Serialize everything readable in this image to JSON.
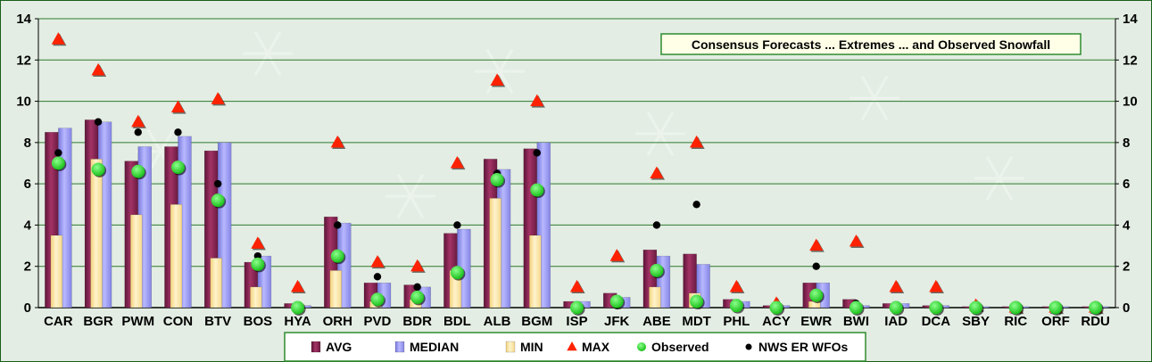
{
  "chart_data": {
    "type": "bar",
    "title": "Consensus Forecasts ... Extremes ... and Observed Snowfall",
    "xlabel": "",
    "ylabel": "",
    "ylim": [
      0,
      14
    ],
    "y_ticks": [
      0,
      2,
      4,
      6,
      8,
      10,
      12,
      14
    ],
    "grid": true,
    "legend_position": "bottom",
    "categories": [
      "CAR",
      "BGR",
      "PWM",
      "CON",
      "BTV",
      "BOS",
      "HYA",
      "ORH",
      "PVD",
      "BDR",
      "BDL",
      "ALB",
      "BGM",
      "ISP",
      "JFK",
      "ABE",
      "MDT",
      "PHL",
      "ACY",
      "EWR",
      "BWI",
      "IAD",
      "DCA",
      "SBY",
      "RIC",
      "ORF",
      "RDU"
    ],
    "series": [
      {
        "name": "AVG",
        "type": "bar",
        "color": "#8B2252",
        "values": [
          8.5,
          9.1,
          7.1,
          7.8,
          7.6,
          2.2,
          0.2,
          4.4,
          1.2,
          1.1,
          3.6,
          7.2,
          7.7,
          0.3,
          0.7,
          2.8,
          2.6,
          0.4,
          0.1,
          1.2,
          0.4,
          0.2,
          0.1,
          0.05,
          0.05,
          0.05,
          0.05
        ]
      },
      {
        "name": "MEDIAN",
        "type": "bar",
        "color": "#9999FF",
        "values": [
          8.7,
          9.0,
          7.8,
          8.3,
          8.0,
          2.5,
          0.1,
          4.1,
          1.2,
          1.0,
          3.8,
          6.7,
          8.0,
          0.3,
          0.5,
          2.5,
          2.1,
          0.3,
          0.1,
          1.2,
          0.1,
          0.2,
          0.1,
          0.05,
          0.05,
          0.05,
          0.05
        ]
      },
      {
        "name": "MIN",
        "type": "bar",
        "color": "#FFE9A8",
        "values": [
          3.5,
          7.2,
          4.5,
          5.0,
          2.4,
          1.0,
          0.0,
          1.8,
          0.3,
          0.4,
          1.8,
          5.3,
          3.5,
          0.0,
          0.0,
          1.0,
          0.7,
          0.0,
          0.0,
          0.3,
          0.0,
          0.0,
          0.0,
          0.0,
          0.0,
          0.0,
          0.0
        ]
      },
      {
        "name": "MAX",
        "type": "marker",
        "color": "#FF2200",
        "values": [
          13.0,
          11.5,
          9.0,
          9.7,
          10.1,
          3.1,
          1.0,
          8.0,
          2.2,
          2.0,
          7.0,
          11.0,
          10.0,
          1.0,
          2.5,
          6.5,
          8.0,
          1.0,
          0.2,
          3.0,
          3.2,
          1.0,
          1.0,
          0.1,
          0.0,
          0.0,
          0.0
        ]
      },
      {
        "name": "Observed",
        "type": "marker",
        "color": "#22DD22",
        "values": [
          7.0,
          6.7,
          6.6,
          6.8,
          5.2,
          2.1,
          0.0,
          2.5,
          0.4,
          0.5,
          1.7,
          6.2,
          5.7,
          0.0,
          0.3,
          1.8,
          0.3,
          0.1,
          0.0,
          0.6,
          0.0,
          0.0,
          0.0,
          0.0,
          0.0,
          0.0,
          0.0
        ]
      },
      {
        "name": "NWS ER WFOs",
        "type": "marker",
        "color": "#000000",
        "values": [
          7.5,
          9.0,
          8.5,
          8.5,
          6.0,
          2.5,
          0.0,
          4.0,
          1.5,
          1.0,
          4.0,
          6.5,
          7.5,
          0.0,
          0.1,
          4.0,
          5.0,
          0.1,
          0.0,
          2.0,
          0.2,
          0.0,
          0.0,
          0.0,
          0.0,
          0.0,
          0.0
        ]
      }
    ]
  },
  "colors": {
    "plot_background": "#E3EDE3",
    "border": "#1A5E1A",
    "title_box_border": "#2E8B2E",
    "gridline": "#2E7A2E"
  }
}
